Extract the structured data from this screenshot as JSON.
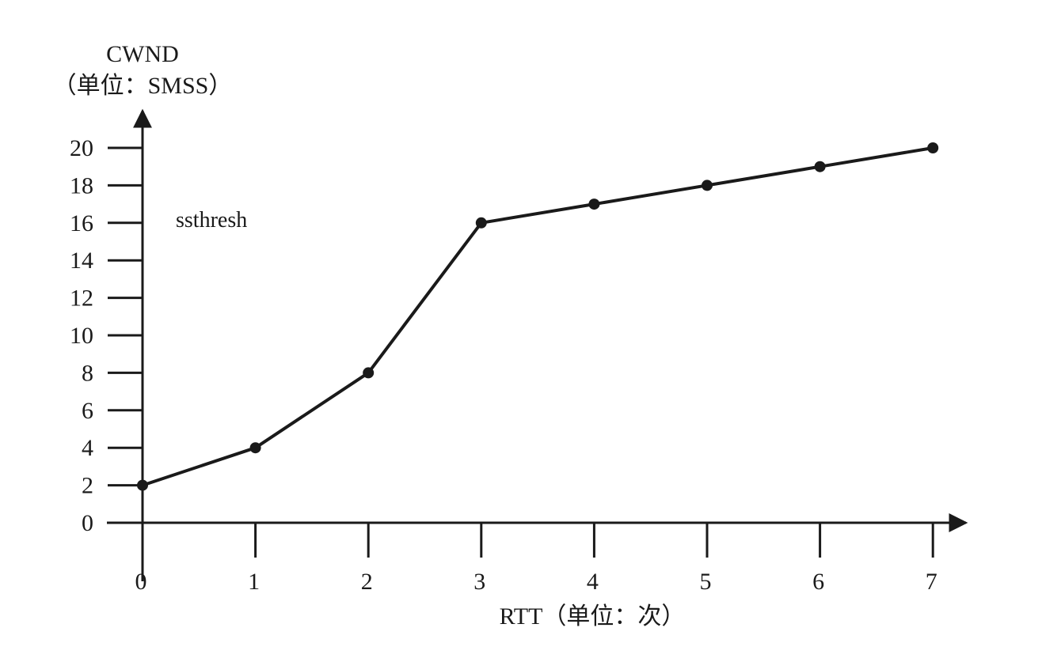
{
  "chart_data": {
    "type": "line",
    "ylabel_line1": "CWND",
    "ylabel_line2": "（单位：SMSS）",
    "xlabel": "RTT（单位：次）",
    "annotation": "ssthresh",
    "x": [
      0,
      1,
      2,
      3,
      4,
      5,
      6,
      7
    ],
    "series": [
      {
        "name": "CWND",
        "values": [
          2,
          4,
          8,
          16,
          17,
          18,
          19,
          20
        ]
      }
    ],
    "xticks": [
      0,
      1,
      2,
      3,
      4,
      5,
      6,
      7
    ],
    "yticks": [
      0,
      2,
      4,
      6,
      8,
      10,
      12,
      14,
      16,
      18,
      20
    ],
    "xlim": [
      0,
      7
    ],
    "ylim": [
      0,
      20
    ],
    "grid": false,
    "color": "#1a1a1a"
  }
}
